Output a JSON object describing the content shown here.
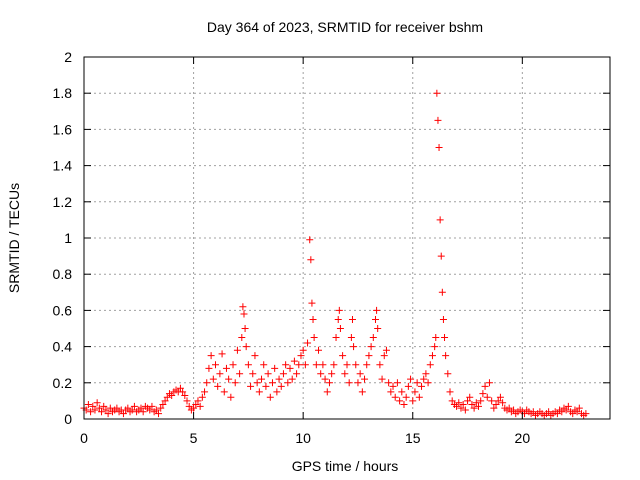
{
  "chart_data": {
    "type": "scatter",
    "title": "Day 364 of 2023, SRMTID for receiver bshm",
    "xlabel": "GPS time / hours",
    "ylabel": "SRMTID / TECUs",
    "xlim": [
      0,
      24
    ],
    "ylim": [
      0,
      2
    ],
    "x_ticks": [
      "0",
      "5",
      "10",
      "15",
      "20"
    ],
    "x_tick_values": [
      0,
      5,
      10,
      15,
      20
    ],
    "y_ticks": [
      "0",
      "0.2",
      "0.4",
      "0.6",
      "0.8",
      "1",
      "1.2",
      "1.4",
      "1.6",
      "1.8",
      "2"
    ],
    "y_tick_values": [
      0,
      0.2,
      0.4,
      0.6,
      0.8,
      1.0,
      1.2,
      1.4,
      1.6,
      1.8,
      2.0
    ],
    "grid": true,
    "marker": "+",
    "marker_color": "#ff0000",
    "series": [
      {
        "name": "SRMTID",
        "points": [
          [
            0.0,
            0.06
          ],
          [
            0.1,
            0.05
          ],
          [
            0.2,
            0.08
          ],
          [
            0.3,
            0.04
          ],
          [
            0.4,
            0.07
          ],
          [
            0.5,
            0.05
          ],
          [
            0.6,
            0.09
          ],
          [
            0.7,
            0.06
          ],
          [
            0.8,
            0.04
          ],
          [
            0.9,
            0.07
          ],
          [
            1.0,
            0.05
          ],
          [
            1.1,
            0.03
          ],
          [
            1.2,
            0.06
          ],
          [
            1.3,
            0.04
          ],
          [
            1.4,
            0.05
          ],
          [
            1.5,
            0.06
          ],
          [
            1.6,
            0.04
          ],
          [
            1.7,
            0.05
          ],
          [
            1.8,
            0.03
          ],
          [
            1.9,
            0.05
          ],
          [
            2.0,
            0.06
          ],
          [
            2.1,
            0.04
          ],
          [
            2.2,
            0.05
          ],
          [
            2.3,
            0.07
          ],
          [
            2.4,
            0.04
          ],
          [
            2.5,
            0.05
          ],
          [
            2.6,
            0.06
          ],
          [
            2.7,
            0.04
          ],
          [
            2.8,
            0.07
          ],
          [
            2.9,
            0.06
          ],
          [
            3.0,
            0.05
          ],
          [
            3.1,
            0.07
          ],
          [
            3.2,
            0.04
          ],
          [
            3.3,
            0.05
          ],
          [
            3.4,
            0.03
          ],
          [
            3.5,
            0.06
          ],
          [
            3.6,
            0.08
          ],
          [
            3.7,
            0.1
          ],
          [
            3.8,
            0.12
          ],
          [
            3.9,
            0.14
          ],
          [
            4.0,
            0.13
          ],
          [
            4.1,
            0.15
          ],
          [
            4.2,
            0.16
          ],
          [
            4.3,
            0.15
          ],
          [
            4.4,
            0.17
          ],
          [
            4.5,
            0.15
          ],
          [
            4.6,
            0.13
          ],
          [
            4.7,
            0.1
          ],
          [
            4.8,
            0.07
          ],
          [
            4.9,
            0.05
          ],
          [
            5.0,
            0.06
          ],
          [
            5.1,
            0.08
          ],
          [
            5.2,
            0.1
          ],
          [
            5.3,
            0.07
          ],
          [
            5.4,
            0.12
          ],
          [
            5.5,
            0.15
          ],
          [
            5.6,
            0.2
          ],
          [
            5.7,
            0.28
          ],
          [
            5.8,
            0.35
          ],
          [
            5.9,
            0.22
          ],
          [
            6.0,
            0.3
          ],
          [
            6.1,
            0.18
          ],
          [
            6.2,
            0.25
          ],
          [
            6.3,
            0.36
          ],
          [
            6.4,
            0.15
          ],
          [
            6.5,
            0.28
          ],
          [
            6.6,
            0.22
          ],
          [
            6.7,
            0.12
          ],
          [
            6.8,
            0.3
          ],
          [
            6.9,
            0.2
          ],
          [
            7.0,
            0.38
          ],
          [
            7.1,
            0.25
          ],
          [
            7.2,
            0.45
          ],
          [
            7.25,
            0.62
          ],
          [
            7.3,
            0.58
          ],
          [
            7.35,
            0.5
          ],
          [
            7.4,
            0.4
          ],
          [
            7.5,
            0.3
          ],
          [
            7.6,
            0.18
          ],
          [
            7.7,
            0.25
          ],
          [
            7.8,
            0.35
          ],
          [
            7.9,
            0.2
          ],
          [
            8.0,
            0.15
          ],
          [
            8.1,
            0.22
          ],
          [
            8.2,
            0.3
          ],
          [
            8.3,
            0.18
          ],
          [
            8.4,
            0.25
          ],
          [
            8.5,
            0.12
          ],
          [
            8.6,
            0.2
          ],
          [
            8.7,
            0.28
          ],
          [
            8.8,
            0.15
          ],
          [
            8.9,
            0.22
          ],
          [
            9.0,
            0.18
          ],
          [
            9.1,
            0.25
          ],
          [
            9.2,
            0.3
          ],
          [
            9.3,
            0.2
          ],
          [
            9.4,
            0.28
          ],
          [
            9.5,
            0.22
          ],
          [
            9.6,
            0.32
          ],
          [
            9.7,
            0.25
          ],
          [
            9.8,
            0.3
          ],
          [
            9.9,
            0.35
          ],
          [
            10.0,
            0.38
          ],
          [
            10.1,
            0.3
          ],
          [
            10.2,
            0.42
          ],
          [
            10.3,
            0.99
          ],
          [
            10.35,
            0.88
          ],
          [
            10.4,
            0.64
          ],
          [
            10.45,
            0.55
          ],
          [
            10.5,
            0.45
          ],
          [
            10.6,
            0.3
          ],
          [
            10.7,
            0.38
          ],
          [
            10.8,
            0.25
          ],
          [
            10.9,
            0.3
          ],
          [
            11.0,
            0.22
          ],
          [
            11.1,
            0.15
          ],
          [
            11.2,
            0.2
          ],
          [
            11.3,
            0.25
          ],
          [
            11.4,
            0.3
          ],
          [
            11.5,
            0.45
          ],
          [
            11.6,
            0.55
          ],
          [
            11.65,
            0.6
          ],
          [
            11.7,
            0.5
          ],
          [
            11.8,
            0.35
          ],
          [
            11.9,
            0.25
          ],
          [
            12.0,
            0.3
          ],
          [
            12.1,
            0.2
          ],
          [
            12.2,
            0.45
          ],
          [
            12.25,
            0.55
          ],
          [
            12.3,
            0.4
          ],
          [
            12.4,
            0.3
          ],
          [
            12.5,
            0.2
          ],
          [
            12.6,
            0.25
          ],
          [
            12.7,
            0.15
          ],
          [
            12.8,
            0.22
          ],
          [
            12.9,
            0.3
          ],
          [
            13.0,
            0.35
          ],
          [
            13.1,
            0.4
          ],
          [
            13.2,
            0.45
          ],
          [
            13.3,
            0.55
          ],
          [
            13.35,
            0.6
          ],
          [
            13.4,
            0.5
          ],
          [
            13.5,
            0.3
          ],
          [
            13.6,
            0.22
          ],
          [
            13.7,
            0.35
          ],
          [
            13.8,
            0.38
          ],
          [
            13.9,
            0.2
          ],
          [
            14.0,
            0.15
          ],
          [
            14.1,
            0.18
          ],
          [
            14.2,
            0.12
          ],
          [
            14.3,
            0.2
          ],
          [
            14.4,
            0.1
          ],
          [
            14.5,
            0.15
          ],
          [
            14.6,
            0.08
          ],
          [
            14.7,
            0.12
          ],
          [
            14.8,
            0.18
          ],
          [
            14.9,
            0.22
          ],
          [
            15.0,
            0.1
          ],
          [
            15.1,
            0.15
          ],
          [
            15.2,
            0.2
          ],
          [
            15.3,
            0.12
          ],
          [
            15.4,
            0.18
          ],
          [
            15.5,
            0.22
          ],
          [
            15.6,
            0.25
          ],
          [
            15.7,
            0.2
          ],
          [
            15.8,
            0.3
          ],
          [
            15.9,
            0.35
          ],
          [
            16.0,
            0.4
          ],
          [
            16.05,
            0.45
          ],
          [
            16.1,
            1.8
          ],
          [
            16.15,
            1.65
          ],
          [
            16.2,
            1.5
          ],
          [
            16.25,
            1.1
          ],
          [
            16.3,
            0.9
          ],
          [
            16.35,
            0.7
          ],
          [
            16.4,
            0.55
          ],
          [
            16.45,
            0.45
          ],
          [
            16.5,
            0.35
          ],
          [
            16.6,
            0.25
          ],
          [
            16.7,
            0.15
          ],
          [
            16.8,
            0.1
          ],
          [
            16.9,
            0.08
          ],
          [
            17.0,
            0.07
          ],
          [
            17.1,
            0.09
          ],
          [
            17.2,
            0.06
          ],
          [
            17.3,
            0.08
          ],
          [
            17.4,
            0.05
          ],
          [
            17.5,
            0.1
          ],
          [
            17.6,
            0.12
          ],
          [
            17.7,
            0.08
          ],
          [
            17.8,
            0.06
          ],
          [
            17.9,
            0.09
          ],
          [
            18.0,
            0.07
          ],
          [
            18.1,
            0.1
          ],
          [
            18.2,
            0.14
          ],
          [
            18.3,
            0.18
          ],
          [
            18.4,
            0.12
          ],
          [
            18.5,
            0.2
          ],
          [
            18.6,
            0.1
          ],
          [
            18.7,
            0.06
          ],
          [
            18.8,
            0.08
          ],
          [
            18.9,
            0.1
          ],
          [
            19.0,
            0.12
          ],
          [
            19.1,
            0.09
          ],
          [
            19.2,
            0.06
          ],
          [
            19.3,
            0.05
          ],
          [
            19.4,
            0.06
          ],
          [
            19.5,
            0.04
          ],
          [
            19.6,
            0.05
          ],
          [
            19.7,
            0.03
          ],
          [
            19.8,
            0.04
          ],
          [
            19.9,
            0.05
          ],
          [
            20.0,
            0.04
          ],
          [
            20.1,
            0.03
          ],
          [
            20.2,
            0.05
          ],
          [
            20.3,
            0.04
          ],
          [
            20.4,
            0.03
          ],
          [
            20.5,
            0.04
          ],
          [
            20.6,
            0.02
          ],
          [
            20.7,
            0.03
          ],
          [
            20.8,
            0.04
          ],
          [
            20.9,
            0.03
          ],
          [
            21.0,
            0.02
          ],
          [
            21.1,
            0.03
          ],
          [
            21.2,
            0.04
          ],
          [
            21.3,
            0.02
          ],
          [
            21.4,
            0.03
          ],
          [
            21.5,
            0.04
          ],
          [
            21.6,
            0.03
          ],
          [
            21.7,
            0.05
          ],
          [
            21.8,
            0.04
          ],
          [
            21.9,
            0.06
          ],
          [
            22.0,
            0.05
          ],
          [
            22.1,
            0.07
          ],
          [
            22.2,
            0.04
          ],
          [
            22.3,
            0.03
          ],
          [
            22.4,
            0.05
          ],
          [
            22.5,
            0.04
          ],
          [
            22.6,
            0.06
          ],
          [
            22.7,
            0.03
          ],
          [
            22.8,
            0.02
          ],
          [
            22.9,
            0.03
          ]
        ]
      }
    ]
  }
}
